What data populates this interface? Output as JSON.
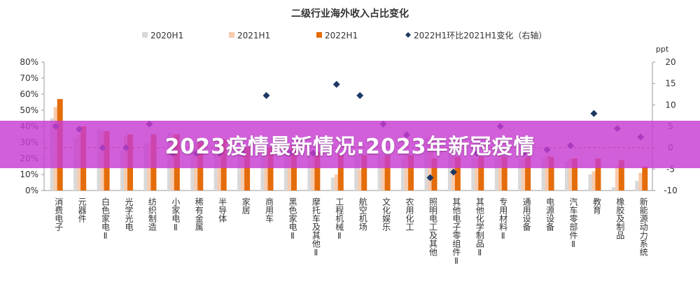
{
  "chart_data": {
    "type": "bar",
    "title": "二级行业海外收入占比变化",
    "categories": [
      "消费电子",
      "元器件",
      "白色家电Ⅱ",
      "光学光电",
      "纺织制造",
      "小家电Ⅱ",
      "稀有金属",
      "半导体",
      "家居",
      "商用车",
      "黑色家电Ⅱ",
      "摩托车及其他Ⅱ",
      "工程机械Ⅱ",
      "航空机场",
      "文化娱乐",
      "农用化工",
      "照明电工及其他",
      "其他电子零组件Ⅱ",
      "其他化学制品Ⅱ",
      "专用材料Ⅱ",
      "通用设备",
      "电源设备",
      "汽车零部件Ⅱ",
      "教育",
      "橡胶及制品",
      "新能源动力系统"
    ],
    "series": [
      {
        "name": "2020H1",
        "type": "bar",
        "color": "#d9d9d9",
        "values": [
          45,
          33,
          38,
          25,
          29,
          36,
          30,
          30,
          25,
          22,
          30,
          22,
          8,
          22,
          23,
          20,
          33,
          23,
          20,
          20,
          20,
          20,
          18,
          10,
          2,
          6
        ]
      },
      {
        "name": "2021H1",
        "type": "bar",
        "color": "#f8cbad",
        "values": [
          52,
          35,
          37,
          34,
          30,
          35,
          29,
          31,
          24,
          24,
          29,
          23,
          10,
          13,
          21,
          23,
          33,
          21,
          20,
          22,
          20,
          22,
          20,
          12,
          16,
          11
        ]
      },
      {
        "name": "2022H1",
        "type": "bar",
        "color": "#e46c0a",
        "values": [
          57,
          40,
          37,
          35,
          35,
          35,
          30,
          32,
          27,
          27,
          27,
          24,
          23,
          22,
          22,
          22,
          20,
          21,
          21,
          21,
          21,
          21,
          20,
          20,
          19,
          15
        ]
      },
      {
        "name": "2022H1环比2021H1变化（右轴）",
        "type": "scatter",
        "axis": "right",
        "color": "#1f3864",
        "values": [
          5,
          4.3,
          0,
          0,
          5.5,
          -1.3,
          -1.3,
          -1.3,
          -1.3,
          12.2,
          -1.3,
          -1.3,
          14.8,
          12.2,
          5.5,
          3,
          -7,
          -5.7,
          -1.3,
          5,
          -1.3,
          -0.5,
          0.5,
          8,
          4.5,
          2.5
        ]
      }
    ],
    "yaxis_left": {
      "min": 0,
      "max": 80,
      "step": 10,
      "format": "percent",
      "ticks": [
        "0%",
        "10%",
        "20%",
        "30%",
        "40%",
        "50%",
        "60%",
        "70%",
        "80%"
      ]
    },
    "yaxis_right": {
      "min": -10,
      "max": 20,
      "step": 5,
      "unit_label": "ppt",
      "ticks": [
        "-10",
        "-5",
        "0",
        "5",
        "10",
        "15",
        "20"
      ]
    },
    "legend_placement": "top-center",
    "grid": false
  },
  "banner": {
    "text": "2023疫情最新情况:2023年新冠疫情"
  }
}
